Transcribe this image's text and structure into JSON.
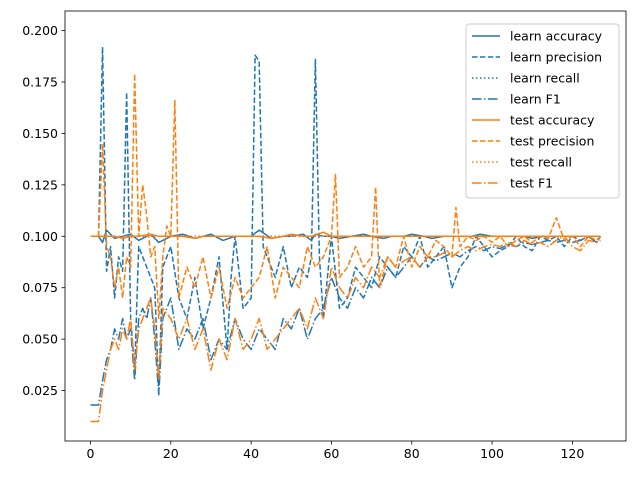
{
  "chart_data": {
    "type": "line",
    "title": "",
    "xlabel": "",
    "ylabel": "",
    "xlim": [
      -6.35,
      133.35
    ],
    "ylim": [
      0.0005,
      0.2095
    ],
    "x_ticks": [
      0,
      20,
      40,
      60,
      80,
      100,
      120
    ],
    "y_ticks": [
      0.025,
      0.05,
      0.075,
      0.1,
      0.125,
      0.15,
      0.175,
      0.2
    ],
    "x_tick_labels": [
      "0",
      "20",
      "40",
      "60",
      "80",
      "100",
      "120"
    ],
    "y_tick_labels": [
      "0.025",
      "0.050",
      "0.075",
      "0.100",
      "0.125",
      "0.150",
      "0.175",
      "0.200"
    ],
    "legend_position": "top-right",
    "colors": {
      "learn": "#1f77b4",
      "test": "#ff7f0e"
    },
    "series": [
      {
        "name": "learn accuracy",
        "color": "#1f77b4",
        "dash": "solid",
        "x": [
          0,
          2,
          3,
          4,
          6,
          8,
          10,
          12,
          15,
          17,
          20,
          23,
          26,
          28,
          30,
          33,
          36,
          40,
          42,
          45,
          48,
          50,
          53,
          55,
          56,
          58,
          60,
          62,
          65,
          68,
          70,
          73,
          75,
          78,
          80,
          83,
          85,
          88,
          90,
          92,
          95,
          97,
          100,
          103,
          105,
          108,
          110,
          113,
          115,
          118,
          120,
          123,
          125,
          127
        ],
        "y": [
          0.1,
          0.1,
          0.097,
          0.103,
          0.099,
          0.1,
          0.101,
          0.098,
          0.101,
          0.097,
          0.1,
          0.101,
          0.099,
          0.1,
          0.101,
          0.098,
          0.1,
          0.1,
          0.103,
          0.099,
          0.1,
          0.1,
          0.101,
          0.098,
          0.101,
          0.1,
          0.1,
          0.099,
          0.1,
          0.101,
          0.1,
          0.099,
          0.1,
          0.1,
          0.101,
          0.1,
          0.099,
          0.1,
          0.1,
          0.1,
          0.1,
          0.101,
          0.1,
          0.1,
          0.1,
          0.1,
          0.099,
          0.1,
          0.1,
          0.1,
          0.1,
          0.1,
          0.1,
          0.1
        ]
      },
      {
        "name": "learn precision",
        "color": "#1f77b4",
        "dash": "dashed",
        "x": [
          0,
          2,
          3,
          4,
          5,
          6,
          7,
          8,
          9,
          10,
          11,
          12,
          14,
          16,
          17,
          18,
          20,
          22,
          24,
          26,
          28,
          30,
          32,
          34,
          35,
          36,
          38,
          40,
          41,
          42,
          43,
          44,
          46,
          48,
          50,
          52,
          54,
          55,
          56,
          57,
          58,
          60,
          62,
          64,
          66,
          68,
          70,
          72,
          74,
          76,
          78,
          80,
          82,
          84,
          86,
          88,
          90,
          92,
          94,
          96,
          98,
          100,
          102,
          104,
          106,
          108,
          110,
          112,
          114,
          116,
          118,
          120,
          122,
          124,
          126,
          127
        ],
        "y": [
          0.1,
          0.1,
          0.192,
          0.083,
          0.095,
          0.07,
          0.09,
          0.083,
          0.17,
          0.06,
          0.035,
          0.095,
          0.085,
          0.075,
          0.025,
          0.085,
          0.095,
          0.07,
          0.06,
          0.08,
          0.055,
          0.07,
          0.09,
          0.045,
          0.08,
          0.1,
          0.065,
          0.07,
          0.188,
          0.185,
          0.095,
          0.09,
          0.08,
          0.095,
          0.075,
          0.085,
          0.08,
          0.09,
          0.186,
          0.09,
          0.06,
          0.1,
          0.065,
          0.07,
          0.085,
          0.08,
          0.075,
          0.09,
          0.085,
          0.08,
          0.095,
          0.09,
          0.1,
          0.085,
          0.09,
          0.095,
          0.075,
          0.085,
          0.09,
          0.1,
          0.095,
          0.09,
          0.093,
          0.095,
          0.1,
          0.095,
          0.093,
          0.1,
          0.098,
          0.1,
          0.095,
          0.1,
          0.098,
          0.1,
          0.097,
          0.1
        ]
      },
      {
        "name": "learn recall",
        "color": "#1f77b4",
        "dash": "dotted",
        "x": [
          0,
          2,
          3,
          5,
          8,
          10,
          13,
          16,
          20,
          25,
          30,
          35,
          40,
          45,
          50,
          55,
          60,
          65,
          70,
          75,
          80,
          85,
          90,
          95,
          100,
          105,
          110,
          115,
          120,
          125,
          127
        ],
        "y": [
          0.1,
          0.1,
          0.1,
          0.1,
          0.1,
          0.1,
          0.1,
          0.1,
          0.1,
          0.1,
          0.1,
          0.1,
          0.1,
          0.1,
          0.1,
          0.1,
          0.1,
          0.1,
          0.1,
          0.1,
          0.1,
          0.1,
          0.1,
          0.1,
          0.1,
          0.1,
          0.1,
          0.1,
          0.1,
          0.1,
          0.1
        ]
      },
      {
        "name": "learn F1",
        "color": "#1f77b4",
        "dash": "dashdot",
        "x": [
          0,
          2,
          3,
          4,
          5,
          6,
          7,
          8,
          9,
          10,
          11,
          12,
          13,
          14,
          15,
          16,
          17,
          18,
          20,
          22,
          24,
          26,
          28,
          30,
          32,
          34,
          36,
          38,
          40,
          42,
          44,
          46,
          48,
          50,
          52,
          54,
          56,
          58,
          60,
          62,
          64,
          66,
          68,
          70,
          72,
          74,
          76,
          78,
          80,
          82,
          84,
          86,
          88,
          90,
          92,
          94,
          96,
          98,
          100,
          102,
          104,
          106,
          108,
          110,
          112,
          114,
          116,
          118,
          120,
          122,
          124,
          126,
          127
        ],
        "y": [
          0.018,
          0.018,
          0.03,
          0.04,
          0.045,
          0.055,
          0.05,
          0.06,
          0.05,
          0.055,
          0.03,
          0.06,
          0.065,
          0.06,
          0.07,
          0.05,
          0.023,
          0.06,
          0.07,
          0.045,
          0.055,
          0.05,
          0.06,
          0.04,
          0.05,
          0.045,
          0.06,
          0.05,
          0.045,
          0.055,
          0.05,
          0.045,
          0.06,
          0.055,
          0.065,
          0.05,
          0.06,
          0.065,
          0.08,
          0.07,
          0.065,
          0.075,
          0.07,
          0.08,
          0.075,
          0.085,
          0.08,
          0.085,
          0.09,
          0.085,
          0.09,
          0.088,
          0.09,
          0.092,
          0.09,
          0.093,
          0.095,
          0.093,
          0.095,
          0.094,
          0.096,
          0.095,
          0.097,
          0.096,
          0.097,
          0.098,
          0.097,
          0.098,
          0.097,
          0.098,
          0.1,
          0.097,
          0.1
        ]
      },
      {
        "name": "test accuracy",
        "color": "#ff7f0e",
        "dash": "solid",
        "x": [
          0,
          2,
          3,
          4,
          6,
          8,
          10,
          12,
          15,
          17,
          20,
          23,
          26,
          28,
          30,
          33,
          36,
          40,
          42,
          45,
          48,
          50,
          53,
          55,
          58,
          60,
          62,
          65,
          68,
          70,
          73,
          75,
          78,
          80,
          83,
          85,
          88,
          90,
          92,
          95,
          97,
          100,
          103,
          105,
          108,
          110,
          113,
          115,
          118,
          120,
          123,
          125,
          127
        ],
        "y": [
          0.1,
          0.1,
          0.1,
          0.1,
          0.1,
          0.099,
          0.1,
          0.1,
          0.101,
          0.1,
          0.1,
          0.1,
          0.099,
          0.1,
          0.1,
          0.1,
          0.1,
          0.1,
          0.1,
          0.099,
          0.1,
          0.101,
          0.1,
          0.1,
          0.102,
          0.1,
          0.1,
          0.1,
          0.1,
          0.1,
          0.1,
          0.1,
          0.1,
          0.1,
          0.1,
          0.1,
          0.1,
          0.1,
          0.1,
          0.1,
          0.1,
          0.1,
          0.1,
          0.1,
          0.1,
          0.1,
          0.1,
          0.1,
          0.1,
          0.1,
          0.1,
          0.1,
          0.1
        ]
      },
      {
        "name": "test precision",
        "color": "#ff7f0e",
        "dash": "dashed",
        "x": [
          0,
          2,
          3,
          4,
          5,
          6,
          7,
          8,
          9,
          10,
          11,
          12,
          13,
          14,
          15,
          16,
          17,
          18,
          19,
          20,
          21,
          22,
          24,
          26,
          28,
          30,
          32,
          34,
          36,
          38,
          40,
          42,
          44,
          46,
          48,
          50,
          52,
          54,
          56,
          58,
          60,
          61,
          62,
          64,
          66,
          68,
          70,
          71,
          72,
          74,
          76,
          78,
          80,
          82,
          84,
          86,
          88,
          90,
          91,
          92,
          94,
          96,
          98,
          100,
          102,
          104,
          106,
          108,
          110,
          112,
          114,
          116,
          118,
          120,
          122,
          124,
          126,
          127
        ],
        "y": [
          0.1,
          0.1,
          0.145,
          0.095,
          0.09,
          0.075,
          0.085,
          0.07,
          0.09,
          0.085,
          0.179,
          0.1,
          0.125,
          0.11,
          0.09,
          0.095,
          0.06,
          0.09,
          0.105,
          0.1,
          0.166,
          0.07,
          0.085,
          0.075,
          0.09,
          0.07,
          0.085,
          0.065,
          0.08,
          0.07,
          0.075,
          0.08,
          0.095,
          0.07,
          0.085,
          0.08,
          0.075,
          0.095,
          0.085,
          0.09,
          0.1,
          0.13,
          0.08,
          0.085,
          0.095,
          0.085,
          0.09,
          0.124,
          0.075,
          0.09,
          0.085,
          0.1,
          0.085,
          0.095,
          0.09,
          0.098,
          0.095,
          0.09,
          0.114,
          0.095,
          0.1,
          0.098,
          0.1,
          0.097,
          0.1,
          0.095,
          0.098,
          0.1,
          0.097,
          0.1,
          0.099,
          0.109,
          0.098,
          0.1,
          0.095,
          0.1,
          0.098,
          0.1
        ]
      },
      {
        "name": "test recall",
        "color": "#ff7f0e",
        "dash": "dotted",
        "x": [
          0,
          2,
          3,
          5,
          8,
          10,
          13,
          16,
          20,
          25,
          30,
          35,
          40,
          45,
          50,
          55,
          60,
          65,
          70,
          75,
          80,
          85,
          90,
          95,
          100,
          105,
          110,
          115,
          120,
          125,
          127
        ],
        "y": [
          0.1,
          0.1,
          0.1,
          0.1,
          0.1,
          0.1,
          0.1,
          0.1,
          0.1,
          0.1,
          0.1,
          0.1,
          0.1,
          0.1,
          0.1,
          0.1,
          0.1,
          0.1,
          0.1,
          0.1,
          0.1,
          0.1,
          0.1,
          0.1,
          0.1,
          0.1,
          0.1,
          0.1,
          0.1,
          0.1,
          0.1
        ]
      },
      {
        "name": "test F1",
        "color": "#ff7f0e",
        "dash": "dashdot",
        "x": [
          0,
          2,
          3,
          4,
          5,
          6,
          7,
          8,
          9,
          10,
          11,
          12,
          13,
          14,
          15,
          16,
          17,
          18,
          20,
          22,
          24,
          26,
          28,
          30,
          32,
          34,
          36,
          38,
          40,
          42,
          44,
          46,
          48,
          50,
          52,
          54,
          56,
          58,
          60,
          62,
          64,
          66,
          68,
          70,
          72,
          74,
          76,
          78,
          80,
          82,
          84,
          86,
          88,
          90,
          92,
          94,
          96,
          98,
          100,
          102,
          104,
          106,
          108,
          110,
          112,
          114,
          116,
          118,
          120,
          122,
          124,
          126,
          127
        ],
        "y": [
          0.01,
          0.01,
          0.025,
          0.035,
          0.045,
          0.05,
          0.045,
          0.055,
          0.05,
          0.06,
          0.035,
          0.055,
          0.06,
          0.065,
          0.07,
          0.055,
          0.03,
          0.065,
          0.06,
          0.05,
          0.06,
          0.045,
          0.055,
          0.035,
          0.05,
          0.04,
          0.06,
          0.045,
          0.05,
          0.06,
          0.045,
          0.05,
          0.055,
          0.06,
          0.065,
          0.055,
          0.07,
          0.06,
          0.085,
          0.075,
          0.07,
          0.08,
          0.075,
          0.085,
          0.08,
          0.09,
          0.085,
          0.088,
          0.09,
          0.085,
          0.09,
          0.09,
          0.092,
          0.09,
          0.093,
          0.095,
          0.093,
          0.095,
          0.096,
          0.095,
          0.097,
          0.095,
          0.098,
          0.096,
          0.097,
          0.095,
          0.098,
          0.1,
          0.095,
          0.093,
          0.098,
          0.097,
          0.098
        ]
      }
    ]
  }
}
